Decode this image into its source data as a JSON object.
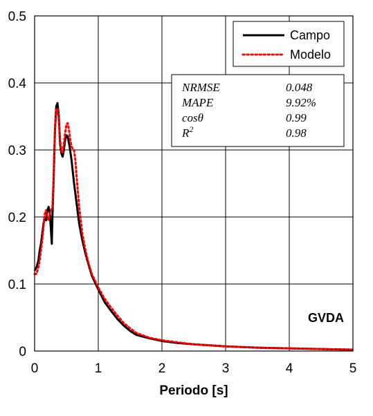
{
  "chart_data": {
    "type": "line",
    "title": "",
    "xlabel": "Periodo [s]",
    "ylabel": "",
    "xlim": [
      0,
      5
    ],
    "ylim": [
      0,
      0.5
    ],
    "x_ticks": [
      "0",
      "1",
      "2",
      "3",
      "4",
      "5"
    ],
    "y_ticks": [
      "0",
      "0.1",
      "0.2",
      "0.3",
      "0.4",
      "0.5"
    ],
    "grid": true,
    "legend_position": "top-right",
    "series": [
      {
        "name": "Campo",
        "color": "#000000",
        "style": "solid",
        "points": [
          [
            0.0,
            0.12
          ],
          [
            0.03,
            0.125
          ],
          [
            0.06,
            0.135
          ],
          [
            0.08,
            0.15
          ],
          [
            0.1,
            0.16
          ],
          [
            0.12,
            0.175
          ],
          [
            0.14,
            0.19
          ],
          [
            0.16,
            0.2
          ],
          [
            0.18,
            0.195
          ],
          [
            0.2,
            0.21
          ],
          [
            0.22,
            0.215
          ],
          [
            0.24,
            0.205
          ],
          [
            0.26,
            0.175
          ],
          [
            0.27,
            0.16
          ],
          [
            0.28,
            0.2
          ],
          [
            0.3,
            0.26
          ],
          [
            0.32,
            0.33
          ],
          [
            0.34,
            0.365
          ],
          [
            0.36,
            0.37
          ],
          [
            0.38,
            0.35
          ],
          [
            0.4,
            0.31
          ],
          [
            0.42,
            0.295
          ],
          [
            0.44,
            0.29
          ],
          [
            0.46,
            0.3
          ],
          [
            0.48,
            0.315
          ],
          [
            0.5,
            0.322
          ],
          [
            0.52,
            0.32
          ],
          [
            0.55,
            0.305
          ],
          [
            0.58,
            0.285
          ],
          [
            0.62,
            0.25
          ],
          [
            0.66,
            0.22
          ],
          [
            0.7,
            0.19
          ],
          [
            0.75,
            0.165
          ],
          [
            0.8,
            0.145
          ],
          [
            0.85,
            0.128
          ],
          [
            0.9,
            0.112
          ],
          [
            1.0,
            0.092
          ],
          [
            1.1,
            0.073
          ],
          [
            1.2,
            0.06
          ],
          [
            1.3,
            0.048
          ],
          [
            1.4,
            0.038
          ],
          [
            1.5,
            0.03
          ],
          [
            1.6,
            0.024
          ],
          [
            1.8,
            0.019
          ],
          [
            2.0,
            0.015
          ],
          [
            2.25,
            0.012
          ],
          [
            2.5,
            0.01
          ],
          [
            3.0,
            0.007
          ],
          [
            3.5,
            0.005
          ],
          [
            4.0,
            0.004
          ],
          [
            4.5,
            0.003
          ],
          [
            5.0,
            0.002
          ]
        ]
      },
      {
        "name": "Modelo",
        "color": "#ff0000",
        "style": "dotted",
        "points": [
          [
            0.0,
            0.115
          ],
          [
            0.03,
            0.115
          ],
          [
            0.06,
            0.125
          ],
          [
            0.08,
            0.135
          ],
          [
            0.1,
            0.15
          ],
          [
            0.12,
            0.165
          ],
          [
            0.14,
            0.185
          ],
          [
            0.16,
            0.205
          ],
          [
            0.18,
            0.21
          ],
          [
            0.2,
            0.2
          ],
          [
            0.22,
            0.195
          ],
          [
            0.24,
            0.205
          ],
          [
            0.26,
            0.21
          ],
          [
            0.28,
            0.215
          ],
          [
            0.3,
            0.26
          ],
          [
            0.32,
            0.33
          ],
          [
            0.34,
            0.36
          ],
          [
            0.36,
            0.362
          ],
          [
            0.38,
            0.345
          ],
          [
            0.4,
            0.315
          ],
          [
            0.42,
            0.3
          ],
          [
            0.44,
            0.295
          ],
          [
            0.46,
            0.31
          ],
          [
            0.48,
            0.325
          ],
          [
            0.5,
            0.338
          ],
          [
            0.52,
            0.34
          ],
          [
            0.54,
            0.33
          ],
          [
            0.56,
            0.315
          ],
          [
            0.58,
            0.305
          ],
          [
            0.6,
            0.302
          ],
          [
            0.62,
            0.3
          ],
          [
            0.64,
            0.285
          ],
          [
            0.66,
            0.26
          ],
          [
            0.7,
            0.215
          ],
          [
            0.75,
            0.175
          ],
          [
            0.8,
            0.15
          ],
          [
            0.85,
            0.13
          ],
          [
            0.9,
            0.115
          ],
          [
            1.0,
            0.095
          ],
          [
            1.1,
            0.078
          ],
          [
            1.2,
            0.065
          ],
          [
            1.3,
            0.053
          ],
          [
            1.4,
            0.042
          ],
          [
            1.5,
            0.034
          ],
          [
            1.6,
            0.027
          ],
          [
            1.8,
            0.02
          ],
          [
            2.0,
            0.016
          ],
          [
            2.25,
            0.013
          ],
          [
            2.5,
            0.01
          ],
          [
            3.0,
            0.007
          ],
          [
            3.5,
            0.005
          ],
          [
            4.0,
            0.004
          ],
          [
            4.5,
            0.003
          ],
          [
            5.0,
            0.002
          ]
        ]
      }
    ],
    "metrics": [
      {
        "label": "NRMSE",
        "value": "0.048"
      },
      {
        "label": "MAPE",
        "value": "9.92%"
      },
      {
        "label": "cosθ",
        "value": "0.99"
      },
      {
        "label": "R2",
        "value": "0.98"
      }
    ],
    "annotation": "GVDA"
  }
}
